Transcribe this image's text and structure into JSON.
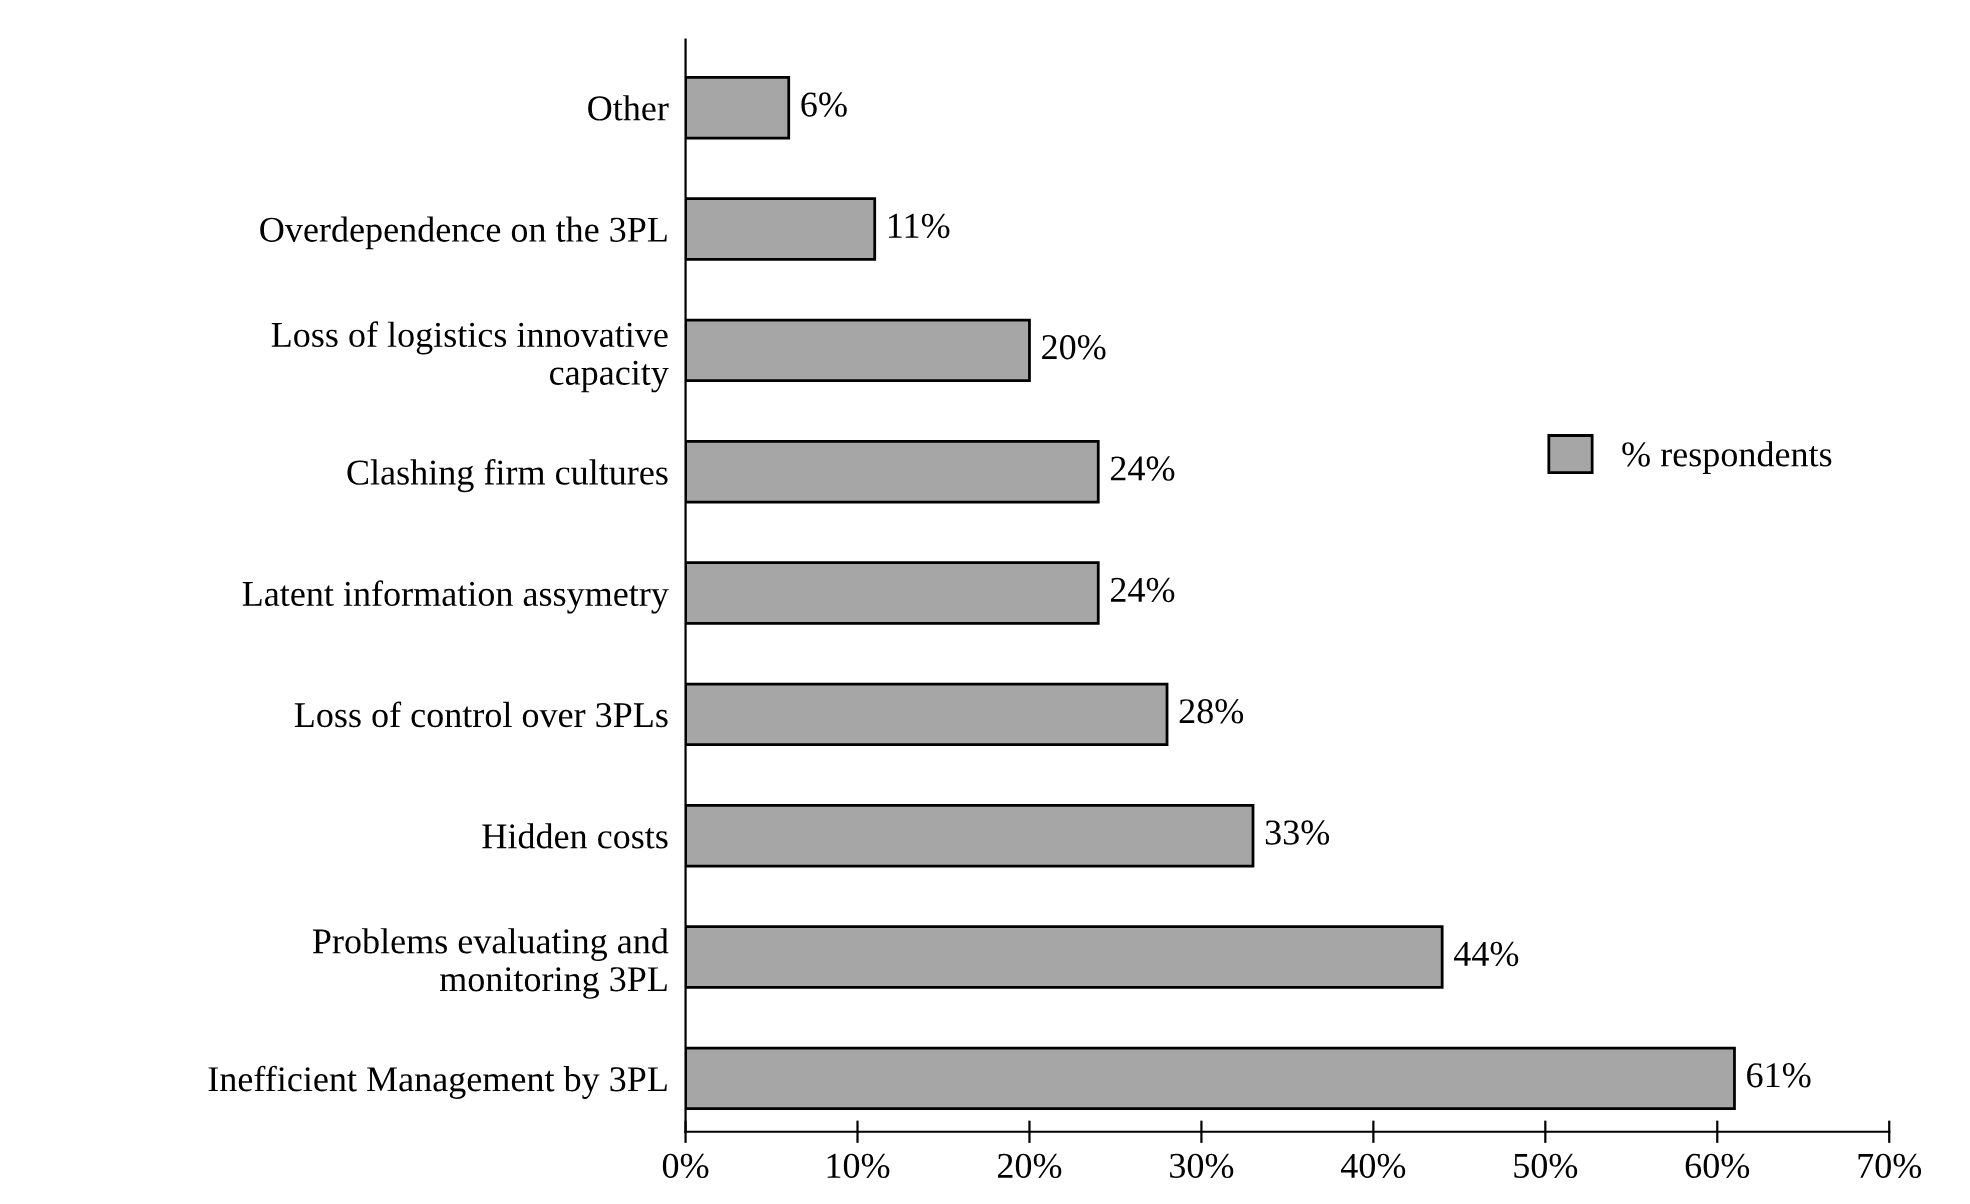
{
  "chart_data": {
    "type": "bar",
    "orientation": "horizontal",
    "categories": [
      "Other",
      "Overdependence on the 3PL",
      "Loss of logistics innovative\ncapacity",
      "Clashing firm cultures",
      "Latent information assymetry",
      "Loss of control over 3PLs",
      "Hidden costs",
      "Problems evaluating and\nmonitoring 3PL",
      "Inefficient Management by 3PL"
    ],
    "series": [
      {
        "name": "% respondents",
        "color": "#a6a6a6",
        "values": [
          6,
          11,
          20,
          24,
          24,
          28,
          33,
          44,
          61
        ]
      }
    ],
    "value_labels": [
      "6%",
      "11%",
      "20%",
      "24%",
      "24%",
      "28%",
      "33%",
      "44%",
      "61%"
    ],
    "xlim": [
      0,
      70
    ],
    "xticks": [
      {
        "value": 0,
        "label": "0%"
      },
      {
        "value": 10,
        "label": "10%"
      },
      {
        "value": 20,
        "label": "20%"
      },
      {
        "value": 30,
        "label": "30%"
      },
      {
        "value": 40,
        "label": "40%"
      },
      {
        "value": 50,
        "label": "50%"
      },
      {
        "value": 60,
        "label": "60%"
      },
      {
        "value": 70,
        "label": "70%"
      }
    ],
    "grid": false,
    "legend": "right"
  }
}
